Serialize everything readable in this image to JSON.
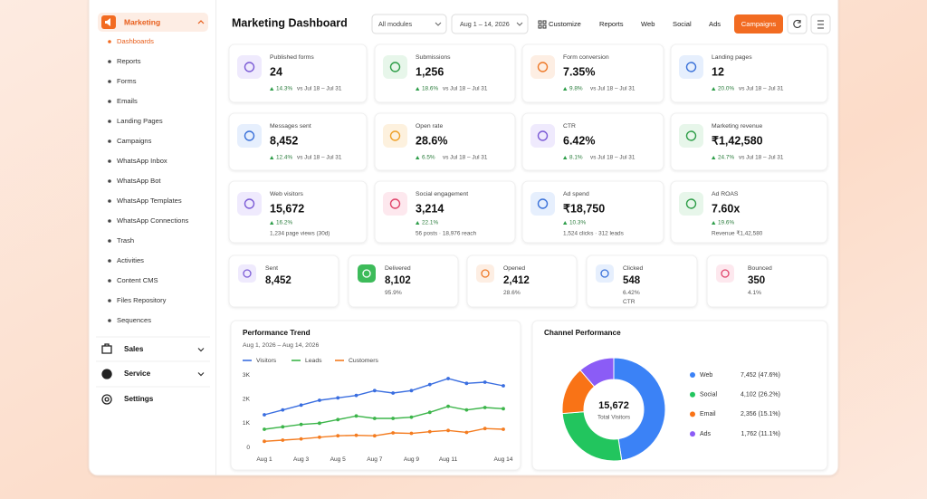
{
  "sidebar": {
    "active_group": "Marketing",
    "items": [
      "Dashboards",
      "Reports",
      "Forms",
      "Emails",
      "Landing Pages",
      "Campaigns",
      "WhatsApp Inbox",
      "WhatsApp Bot",
      "WhatsApp Templates",
      "WhatsApp Connections",
      "Trash",
      "Activities",
      "Content CMS",
      "Files Repository",
      "Sequences"
    ],
    "groups": [
      "Sales",
      "Service",
      "Settings"
    ]
  },
  "header": {
    "title": "Marketing Dashboard",
    "filters": [
      "All modules",
      "Aug 1 – 14, 2026"
    ],
    "actions": [
      "Customize",
      "Reports",
      "Web",
      "Social",
      "Ads"
    ],
    "primary_action": "Campaigns"
  },
  "kpis": [
    {
      "label": "Published forms",
      "value": "24",
      "change": "14.3%",
      "compare": "vs Jul 18 – Jul 31"
    },
    {
      "label": "Submissions",
      "value": "1,256",
      "change": "18.6%",
      "compare": "vs Jul 18 – Jul 31"
    },
    {
      "label": "Form conversion",
      "value": "7.35%",
      "change": "9.8%",
      "compare": "vs Jul 18 – Jul 31"
    },
    {
      "label": "Landing pages",
      "value": "12",
      "change": "20.0%",
      "compare": "vs Jul 18 – Jul 31"
    },
    {
      "label": "Messages sent",
      "value": "8,452",
      "change": "12.4%",
      "compare": "vs Jul 18 – Jul 31"
    },
    {
      "label": "Open rate",
      "value": "28.6%",
      "change": "6.5%",
      "compare": "vs Jul 18 – Jul 31"
    },
    {
      "label": "CTR",
      "value": "6.42%",
      "change": "8.1%",
      "compare": "vs Jul 18 – Jul 31"
    },
    {
      "label": "Marketing revenue",
      "value": "₹1,42,580",
      "change": "24.7%",
      "compare": "vs Jul 18 – Jul 31"
    },
    {
      "label": "Web visitors",
      "value": "15,672",
      "change": "16.2%",
      "note": "1,234 page views (30d)"
    },
    {
      "label": "Social engagement",
      "value": "3,214",
      "change": "22.1%",
      "note": "56 posts · 18,976 reach"
    },
    {
      "label": "Ad spend",
      "value": "₹18,750",
      "change": "10.3%",
      "note": "1,524 clicks · 312 leads"
    },
    {
      "label": "Ad ROAS",
      "value": "7.60x",
      "change": "19.6%",
      "note": "Revenue ₹1,42,580"
    }
  ],
  "funnel": [
    {
      "label": "Sent",
      "value": "8,452"
    },
    {
      "label": "Delivered",
      "value": "8,102",
      "sub": "95.9%"
    },
    {
      "label": "Opened",
      "value": "2,412",
      "sub": "28.6%"
    },
    {
      "label": "Clicked",
      "value": "548",
      "sub": "6.42%",
      "sub2": "CTR"
    },
    {
      "label": "Bounced",
      "value": "350",
      "sub": "4.1%"
    }
  ],
  "chart_data": [
    {
      "type": "line",
      "title": "Performance Trend",
      "subtitle": "Aug 1, 2026 – Aug 14, 2026",
      "categories": [
        "Aug 1",
        null,
        "Aug 3",
        null,
        "Aug 5",
        null,
        "Aug 7",
        null,
        "Aug 9",
        null,
        "Aug 11",
        null,
        null,
        "Aug 14"
      ],
      "series": [
        {
          "name": "Visitors",
          "color": "#3a6ee0",
          "values": [
            1350,
            1550,
            1750,
            1950,
            2050,
            2150,
            2350,
            2250,
            2350,
            2600,
            2850,
            2650,
            2700,
            2550
          ]
        },
        {
          "name": "Leads",
          "color": "#3cb54a",
          "values": [
            750,
            850,
            950,
            1000,
            1150,
            1300,
            1200,
            1200,
            1250,
            1450,
            1700,
            1550,
            1650,
            1600
          ]
        },
        {
          "name": "Customers",
          "color": "#f47c20",
          "values": [
            250,
            300,
            350,
            420,
            480,
            500,
            480,
            600,
            580,
            650,
            700,
            620,
            780,
            750
          ]
        }
      ],
      "ylim": [
        0,
        3000
      ],
      "yticks": [
        0,
        {
          "value": 1000,
          "label": "1K"
        },
        {
          "value": 2000,
          "label": "2K"
        },
        {
          "value": 3000,
          "label": "3K"
        }
      ],
      "grid": false,
      "legend": "top"
    },
    {
      "type": "pie",
      "title": "Channel Performance",
      "center_value": "15,672",
      "center_label": "Total Visitors",
      "categories": [
        "Web",
        "Social",
        "Email",
        "Ads"
      ],
      "values": [
        7452,
        4102,
        2356,
        1762
      ],
      "value_labels": [
        "7,452 (47.6%)",
        "4,102 (26.2%)",
        "2,356 (15.1%)",
        "1,762 (11.1%)"
      ],
      "colors": [
        "#3b82f6",
        "#22c55e",
        "#f97316",
        "#8b5cf6"
      ],
      "donut": true,
      "legend": "right"
    }
  ]
}
